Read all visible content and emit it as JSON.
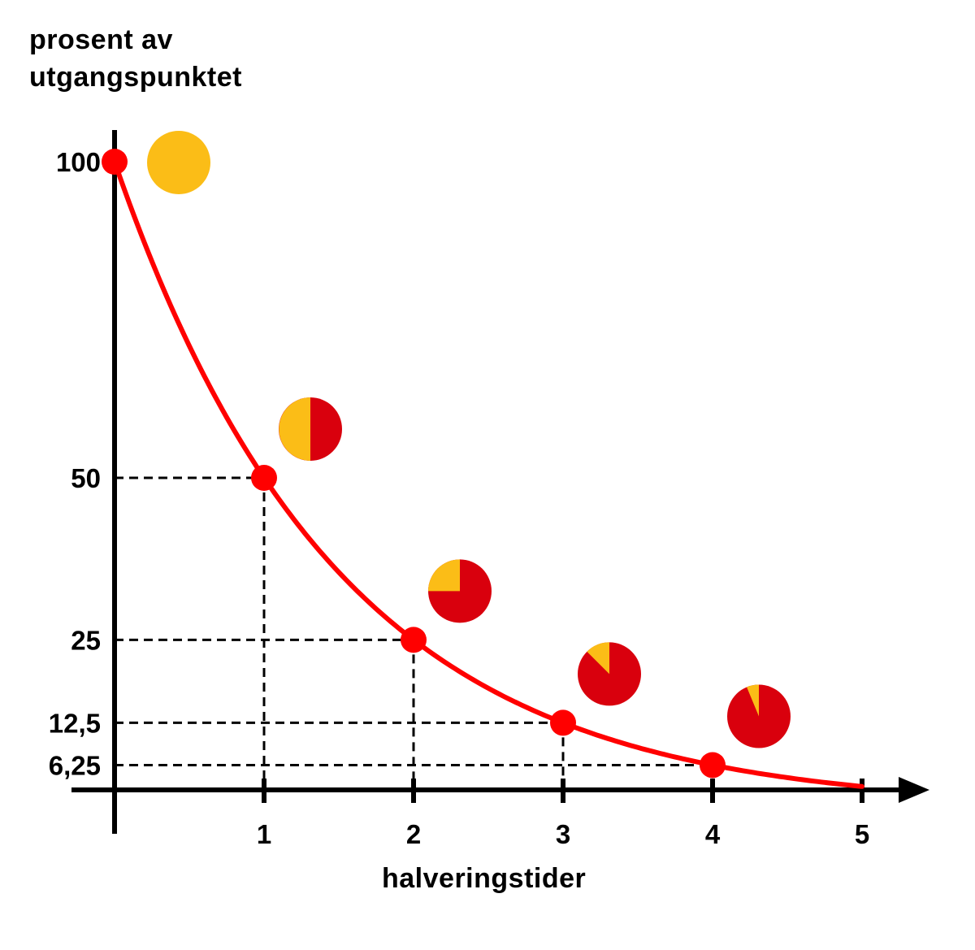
{
  "chart_data": {
    "type": "line",
    "ylabel_lines": [
      "prosent av",
      "utgangspunktet"
    ],
    "xlabel": "halveringstider",
    "x_ticks": [
      1,
      2,
      3,
      4,
      5
    ],
    "x_tick_labels": [
      "1",
      "2",
      "3",
      "4",
      "5"
    ],
    "y_ticks": [
      100,
      50,
      25,
      12.5,
      6.25
    ],
    "y_tick_labels": [
      "100",
      "50",
      "25",
      "12,5",
      "6,25"
    ],
    "xlim": [
      0,
      5
    ],
    "curve": {
      "function": "100 * 0.5^x",
      "x_start": 0,
      "x_end": 5
    },
    "points": [
      {
        "x": 0,
        "y": 100
      },
      {
        "x": 1,
        "y": 50
      },
      {
        "x": 2,
        "y": 25
      },
      {
        "x": 3,
        "y": 12.5
      },
      {
        "x": 4,
        "y": 6.25
      }
    ],
    "pies": [
      {
        "after_halvings": 0,
        "remaining": 1
      },
      {
        "after_halvings": 1,
        "remaining": 0.5
      },
      {
        "after_halvings": 2,
        "remaining": 0.25
      },
      {
        "after_halvings": 3,
        "remaining": 0.125
      },
      {
        "after_halvings": 4,
        "remaining": 0.0625
      }
    ],
    "colors": {
      "curve": "#ff0000",
      "point": "#ff0000",
      "remaining": "#fbbd17",
      "decayed": "#d9000d",
      "axis": "#000000",
      "guides": "#000000"
    }
  }
}
